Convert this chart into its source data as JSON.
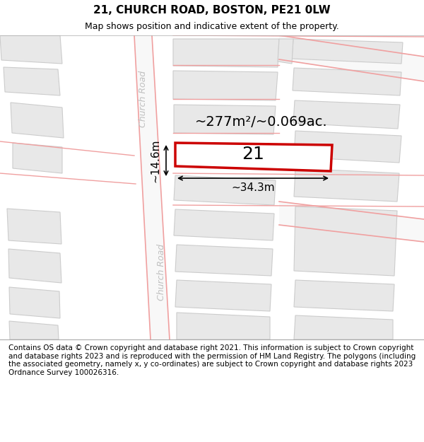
{
  "title": "21, CHURCH ROAD, BOSTON, PE21 0LW",
  "subtitle": "Map shows position and indicative extent of the property.",
  "footer": "Contains OS data © Crown copyright and database right 2021. This information is subject to Crown copyright and database rights 2023 and is reproduced with the permission of HM Land Registry. The polygons (including the associated geometry, namely x, y co-ordinates) are subject to Crown copyright and database rights 2023 Ordnance Survey 100026316.",
  "area_label": "~277m²/~0.069ac.",
  "width_label": "~34.3m",
  "height_label": "~14.6m",
  "number_label": "21",
  "road_label_1": "Church Road",
  "road_label_2": "Church Road",
  "background_color": "#ffffff",
  "building_fill": "#e8e8e8",
  "building_edge": "#cccccc",
  "road_line_color": "#f0a0a0",
  "highlight_color": "#cc0000",
  "highlight_fill": "#ffffff",
  "title_fontsize": 11,
  "subtitle_fontsize": 9,
  "footer_fontsize": 7.5,
  "label_fontsize": 14,
  "number_fontsize": 18
}
